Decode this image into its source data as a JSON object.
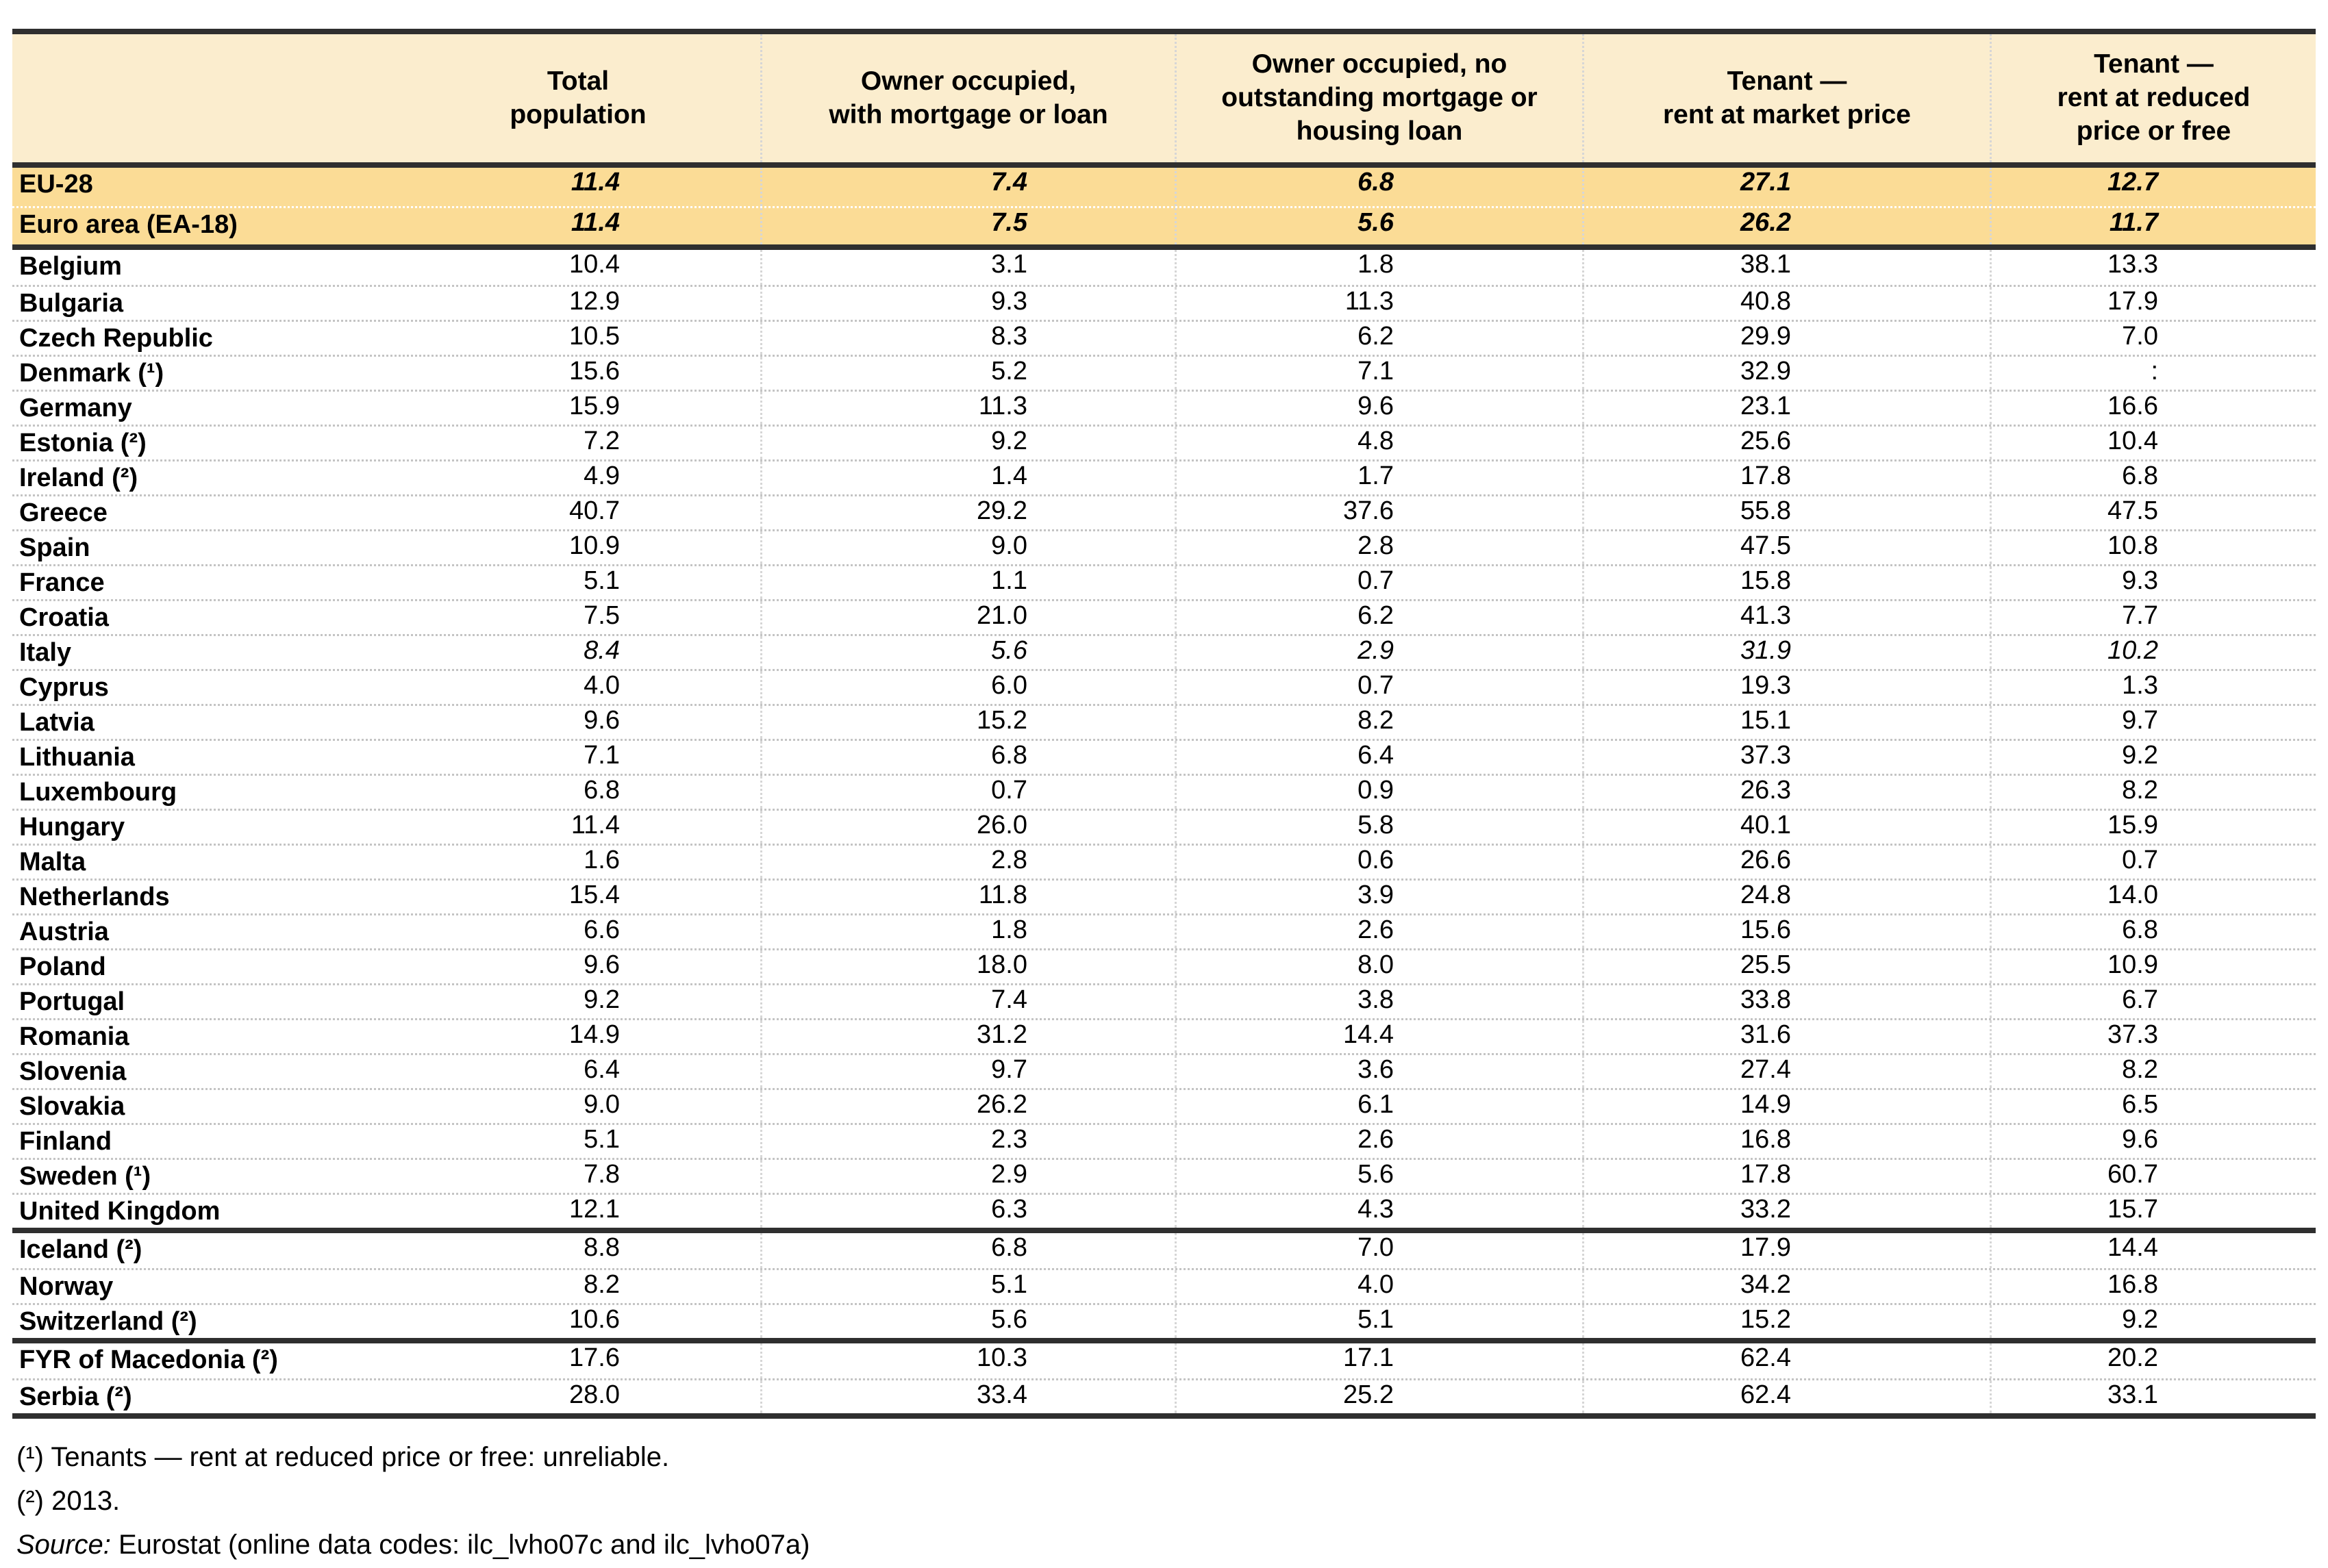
{
  "table": {
    "columns": [
      "",
      "Total\npopulation",
      "Owner occupied,\nwith mortgage or loan",
      "Owner occupied, no\noutstanding mortgage or\nhousing loan",
      "Tenant —\nrent at market price",
      "Tenant —\nrent at reduced\nprice or free"
    ],
    "sections": [
      {
        "name": "aggregates",
        "rows": [
          {
            "name": "EU-28",
            "highlight": true,
            "italic": true,
            "values": [
              "11.4",
              "7.4",
              "6.8",
              "27.1",
              "12.7"
            ]
          },
          {
            "name": "Euro area (EA-18)",
            "highlight": true,
            "italic": true,
            "values": [
              "11.4",
              "7.5",
              "5.6",
              "26.2",
              "11.7"
            ]
          }
        ]
      },
      {
        "name": "eu-members",
        "rows": [
          {
            "name": "Belgium",
            "values": [
              "10.4",
              "3.1",
              "1.8",
              "38.1",
              "13.3"
            ]
          },
          {
            "name": "Bulgaria",
            "values": [
              "12.9",
              "9.3",
              "11.3",
              "40.8",
              "17.9"
            ]
          },
          {
            "name": "Czech Republic",
            "values": [
              "10.5",
              "8.3",
              "6.2",
              "29.9",
              "7.0"
            ]
          },
          {
            "name": "Denmark (¹)",
            "values": [
              "15.6",
              "5.2",
              "7.1",
              "32.9",
              ":"
            ]
          },
          {
            "name": "Germany",
            "values": [
              "15.9",
              "11.3",
              "9.6",
              "23.1",
              "16.6"
            ]
          },
          {
            "name": "Estonia (²)",
            "values": [
              "7.2",
              "9.2",
              "4.8",
              "25.6",
              "10.4"
            ]
          },
          {
            "name": "Ireland (²)",
            "values": [
              "4.9",
              "1.4",
              "1.7",
              "17.8",
              "6.8"
            ]
          },
          {
            "name": "Greece",
            "values": [
              "40.7",
              "29.2",
              "37.6",
              "55.8",
              "47.5"
            ]
          },
          {
            "name": "Spain",
            "values": [
              "10.9",
              "9.0",
              "2.8",
              "47.5",
              "10.8"
            ]
          },
          {
            "name": "France",
            "values": [
              "5.1",
              "1.1",
              "0.7",
              "15.8",
              "9.3"
            ]
          },
          {
            "name": "Croatia",
            "values": [
              "7.5",
              "21.0",
              "6.2",
              "41.3",
              "7.7"
            ]
          },
          {
            "name": "Italy",
            "italic": true,
            "values": [
              "8.4",
              "5.6",
              "2.9",
              "31.9",
              "10.2"
            ]
          },
          {
            "name": "Cyprus",
            "values": [
              "4.0",
              "6.0",
              "0.7",
              "19.3",
              "1.3"
            ]
          },
          {
            "name": "Latvia",
            "values": [
              "9.6",
              "15.2",
              "8.2",
              "15.1",
              "9.7"
            ]
          },
          {
            "name": "Lithuania",
            "values": [
              "7.1",
              "6.8",
              "6.4",
              "37.3",
              "9.2"
            ]
          },
          {
            "name": "Luxembourg",
            "values": [
              "6.8",
              "0.7",
              "0.9",
              "26.3",
              "8.2"
            ]
          },
          {
            "name": "Hungary",
            "values": [
              "11.4",
              "26.0",
              "5.8",
              "40.1",
              "15.9"
            ]
          },
          {
            "name": "Malta",
            "values": [
              "1.6",
              "2.8",
              "0.6",
              "26.6",
              "0.7"
            ]
          },
          {
            "name": "Netherlands",
            "values": [
              "15.4",
              "11.8",
              "3.9",
              "24.8",
              "14.0"
            ]
          },
          {
            "name": "Austria",
            "values": [
              "6.6",
              "1.8",
              "2.6",
              "15.6",
              "6.8"
            ]
          },
          {
            "name": "Poland",
            "values": [
              "9.6",
              "18.0",
              "8.0",
              "25.5",
              "10.9"
            ]
          },
          {
            "name": "Portugal",
            "values": [
              "9.2",
              "7.4",
              "3.8",
              "33.8",
              "6.7"
            ]
          },
          {
            "name": "Romania",
            "values": [
              "14.9",
              "31.2",
              "14.4",
              "31.6",
              "37.3"
            ]
          },
          {
            "name": "Slovenia",
            "values": [
              "6.4",
              "9.7",
              "3.6",
              "27.4",
              "8.2"
            ]
          },
          {
            "name": "Slovakia",
            "values": [
              "9.0",
              "26.2",
              "6.1",
              "14.9",
              "6.5"
            ]
          },
          {
            "name": "Finland",
            "values": [
              "5.1",
              "2.3",
              "2.6",
              "16.8",
              "9.6"
            ]
          },
          {
            "name": "Sweden (¹)",
            "values": [
              "7.8",
              "2.9",
              "5.6",
              "17.8",
              "60.7"
            ]
          },
          {
            "name": "United Kingdom",
            "values": [
              "12.1",
              "6.3",
              "4.3",
              "33.2",
              "15.7"
            ]
          }
        ]
      },
      {
        "name": "efta",
        "rows": [
          {
            "name": "Iceland (²)",
            "values": [
              "8.8",
              "6.8",
              "7.0",
              "17.9",
              "14.4"
            ]
          },
          {
            "name": "Norway",
            "values": [
              "8.2",
              "5.1",
              "4.0",
              "34.2",
              "16.8"
            ]
          },
          {
            "name": "Switzerland (²)",
            "values": [
              "10.6",
              "5.6",
              "5.1",
              "15.2",
              "9.2"
            ]
          }
        ]
      },
      {
        "name": "candidates",
        "rows": [
          {
            "name": "FYR of Macedonia (²)",
            "values": [
              "17.6",
              "10.3",
              "17.1",
              "62.4",
              "20.2"
            ]
          },
          {
            "name": "Serbia (²)",
            "values": [
              "28.0",
              "33.4",
              "25.2",
              "62.4",
              "33.1"
            ]
          }
        ]
      }
    ],
    "not_available_symbol": ":"
  },
  "footnotes": {
    "line1": "(¹) Tenants — rent at reduced price or free: unreliable.",
    "line2": "(²) 2013.",
    "source_label": "Source:",
    "source_text": " Eurostat (online data codes: ilc_lvho07c and ilc_lvho07a)"
  },
  "colors": {
    "header_bg": "#fbedce",
    "highlight_row_bg": "#fbdc96",
    "thick_line": "#2f2f2f",
    "row_separator_dotted": "#c4c4c4",
    "column_separator_dotted": "#d6d6d6",
    "text": "#000000"
  }
}
